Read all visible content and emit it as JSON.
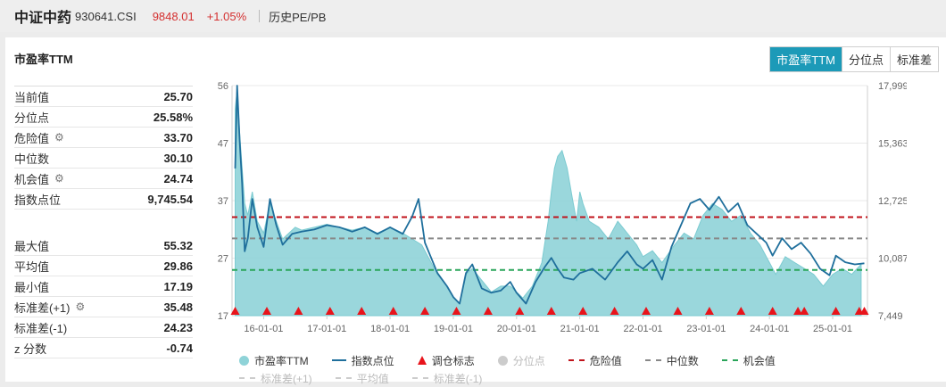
{
  "header": {
    "name": "中证中药",
    "code": "930641.CSI",
    "price": "9848.01",
    "change": "+1.05%",
    "history_label": "历史PE/PB"
  },
  "panel": {
    "title": "市盈率TTM",
    "tabs": [
      "市盈率TTM",
      "分位点",
      "标准差"
    ],
    "active_tab": "市盈率TTM"
  },
  "stats_top": [
    {
      "label": "当前值",
      "value": "25.70",
      "gear": false
    },
    {
      "label": "分位点",
      "value": "25.58%",
      "gear": false
    },
    {
      "label": "危险值",
      "value": "33.70",
      "gear": true
    },
    {
      "label": "中位数",
      "value": "30.10",
      "gear": false
    },
    {
      "label": "机会值",
      "value": "24.74",
      "gear": true
    },
    {
      "label": "指数点位",
      "value": "9,745.54",
      "gear": false
    }
  ],
  "stats_bottom": [
    {
      "label": "最大值",
      "value": "55.32",
      "gear": false
    },
    {
      "label": "平均值",
      "value": "29.86",
      "gear": false
    },
    {
      "label": "最小值",
      "value": "17.19",
      "gear": false
    },
    {
      "label": "标准差(+1)",
      "value": "35.48",
      "gear": true
    },
    {
      "label": "标准差(-1)",
      "value": "24.23",
      "gear": false
    },
    {
      "label": "z 分数",
      "value": "-0.74",
      "gear": false
    }
  ],
  "legend": {
    "row1": [
      "市盈率TTM",
      "指数点位",
      "调仓标志",
      "分位点",
      "危险值",
      "中位数",
      "机会值"
    ],
    "row2": [
      "标准差(+1)",
      "平均值",
      "标准差(-1)"
    ]
  },
  "colors": {
    "pe_area": "#8fd3d8",
    "index_line": "#1f6f9c",
    "danger": "#c0131b",
    "median": "#888888",
    "opportunity": "#2aa55a",
    "rebalance": "#e8141b",
    "accent": "#1c9ab8"
  },
  "chart_data": {
    "type": "line",
    "left_axis": {
      "ticks": [
        "56",
        "47",
        "37",
        "27",
        "17"
      ],
      "range": [
        17,
        56
      ]
    },
    "right_axis": {
      "ticks": [
        "17,999",
        "15,363",
        "12,725",
        "10,087",
        "7,449"
      ],
      "range": [
        7449,
        17999
      ]
    },
    "x_ticks": [
      "16-01-01",
      "17-01-01",
      "18-01-01",
      "19-01-01",
      "20-01-01",
      "21-01-01",
      "22-01-01",
      "23-01-01",
      "24-01-01",
      "25-01-01"
    ],
    "x_range": [
      2015.5,
      2025.55
    ],
    "reference_lines": {
      "danger": 33.7,
      "median": 30.1,
      "opportunity": 24.74
    },
    "pe_ttm": [
      [
        2015.55,
        52
      ],
      [
        2015.58,
        55.32
      ],
      [
        2015.62,
        48
      ],
      [
        2015.66,
        42
      ],
      [
        2015.7,
        36
      ],
      [
        2015.75,
        34
      ],
      [
        2015.82,
        38
      ],
      [
        2015.9,
        33
      ],
      [
        2016.0,
        31
      ],
      [
        2016.1,
        36
      ],
      [
        2016.2,
        33
      ],
      [
        2016.3,
        30
      ],
      [
        2016.4,
        31
      ],
      [
        2016.5,
        32
      ],
      [
        2016.6,
        31.5
      ],
      [
        2016.8,
        32
      ],
      [
        2017.0,
        32.5
      ],
      [
        2017.2,
        32
      ],
      [
        2017.4,
        31.5
      ],
      [
        2017.6,
        32
      ],
      [
        2017.8,
        31
      ],
      [
        2018.0,
        32
      ],
      [
        2018.2,
        31
      ],
      [
        2018.35,
        30
      ],
      [
        2018.5,
        29
      ],
      [
        2018.6,
        27
      ],
      [
        2018.75,
        24
      ],
      [
        2018.9,
        22
      ],
      [
        2019.0,
        20
      ],
      [
        2019.1,
        19
      ],
      [
        2019.2,
        24
      ],
      [
        2019.3,
        25
      ],
      [
        2019.45,
        23
      ],
      [
        2019.6,
        21
      ],
      [
        2019.75,
        22
      ],
      [
        2019.9,
        22
      ],
      [
        2020.0,
        21
      ],
      [
        2020.1,
        20
      ],
      [
        2020.25,
        22
      ],
      [
        2020.4,
        26
      ],
      [
        2020.5,
        33
      ],
      [
        2020.55,
        38
      ],
      [
        2020.6,
        42
      ],
      [
        2020.65,
        44
      ],
      [
        2020.72,
        45
      ],
      [
        2020.8,
        42
      ],
      [
        2020.88,
        37
      ],
      [
        2020.95,
        33
      ],
      [
        2021.0,
        38
      ],
      [
        2021.05,
        36
      ],
      [
        2021.15,
        33
      ],
      [
        2021.3,
        32
      ],
      [
        2021.45,
        30
      ],
      [
        2021.6,
        33
      ],
      [
        2021.75,
        31
      ],
      [
        2021.9,
        29
      ],
      [
        2022.0,
        27
      ],
      [
        2022.15,
        28
      ],
      [
        2022.3,
        26
      ],
      [
        2022.5,
        29
      ],
      [
        2022.65,
        31
      ],
      [
        2022.8,
        30
      ],
      [
        2022.95,
        34
      ],
      [
        2023.1,
        36
      ],
      [
        2023.25,
        35
      ],
      [
        2023.4,
        33
      ],
      [
        2023.55,
        34
      ],
      [
        2023.7,
        31
      ],
      [
        2023.85,
        29
      ],
      [
        2024.0,
        26
      ],
      [
        2024.1,
        24
      ],
      [
        2024.25,
        27
      ],
      [
        2024.4,
        26
      ],
      [
        2024.55,
        25
      ],
      [
        2024.7,
        24
      ],
      [
        2024.85,
        22
      ],
      [
        2025.0,
        24
      ],
      [
        2025.15,
        25
      ],
      [
        2025.3,
        24
      ],
      [
        2025.45,
        25.7
      ]
    ],
    "index_level": [
      [
        2015.55,
        14200
      ],
      [
        2015.58,
        17999
      ],
      [
        2015.62,
        15500
      ],
      [
        2015.66,
        13500
      ],
      [
        2015.7,
        10400
      ],
      [
        2015.75,
        11000
      ],
      [
        2015.82,
        12800
      ],
      [
        2015.9,
        11500
      ],
      [
        2016.0,
        10600
      ],
      [
        2016.1,
        12800
      ],
      [
        2016.2,
        11600
      ],
      [
        2016.3,
        10700
      ],
      [
        2016.45,
        11200
      ],
      [
        2016.6,
        11300
      ],
      [
        2016.8,
        11400
      ],
      [
        2017.0,
        11600
      ],
      [
        2017.2,
        11500
      ],
      [
        2017.4,
        11300
      ],
      [
        2017.6,
        11500
      ],
      [
        2017.8,
        11200
      ],
      [
        2018.0,
        11500
      ],
      [
        2018.2,
        11200
      ],
      [
        2018.35,
        12000
      ],
      [
        2018.45,
        12800
      ],
      [
        2018.55,
        10800
      ],
      [
        2018.75,
        9400
      ],
      [
        2018.9,
        8800
      ],
      [
        2019.0,
        8300
      ],
      [
        2019.1,
        8000
      ],
      [
        2019.2,
        9400
      ],
      [
        2019.3,
        9800
      ],
      [
        2019.45,
        8700
      ],
      [
        2019.6,
        8500
      ],
      [
        2019.75,
        8600
      ],
      [
        2019.9,
        9000
      ],
      [
        2020.0,
        8500
      ],
      [
        2020.15,
        8000
      ],
      [
        2020.3,
        9000
      ],
      [
        2020.45,
        9700
      ],
      [
        2020.55,
        10100
      ],
      [
        2020.65,
        9600
      ],
      [
        2020.75,
        9200
      ],
      [
        2020.9,
        9100
      ],
      [
        2021.0,
        9400
      ],
      [
        2021.2,
        9600
      ],
      [
        2021.4,
        9100
      ],
      [
        2021.6,
        9900
      ],
      [
        2021.75,
        10400
      ],
      [
        2021.9,
        9800
      ],
      [
        2022.0,
        9600
      ],
      [
        2022.15,
        10000
      ],
      [
        2022.3,
        9100
      ],
      [
        2022.45,
        10600
      ],
      [
        2022.6,
        11600
      ],
      [
        2022.75,
        12600
      ],
      [
        2022.9,
        12800
      ],
      [
        2023.05,
        12300
      ],
      [
        2023.2,
        12900
      ],
      [
        2023.35,
        12200
      ],
      [
        2023.5,
        12600
      ],
      [
        2023.65,
        11600
      ],
      [
        2023.8,
        11200
      ],
      [
        2023.95,
        10800
      ],
      [
        2024.05,
        10200
      ],
      [
        2024.2,
        11000
      ],
      [
        2024.35,
        10500
      ],
      [
        2024.5,
        10800
      ],
      [
        2024.65,
        10300
      ],
      [
        2024.8,
        9600
      ],
      [
        2024.95,
        9300
      ],
      [
        2025.05,
        10200
      ],
      [
        2025.2,
        9900
      ],
      [
        2025.35,
        9800
      ],
      [
        2025.5,
        9848
      ]
    ],
    "rebalance_markers": [
      2015.55,
      2016.05,
      2016.55,
      2017.05,
      2017.55,
      2018.05,
      2018.55,
      2019.05,
      2019.55,
      2020.05,
      2020.55,
      2021.05,
      2021.55,
      2022.05,
      2022.55,
      2023.05,
      2023.55,
      2024.05,
      2024.45,
      2024.55,
      2025.05,
      2025.42,
      2025.5
    ]
  }
}
